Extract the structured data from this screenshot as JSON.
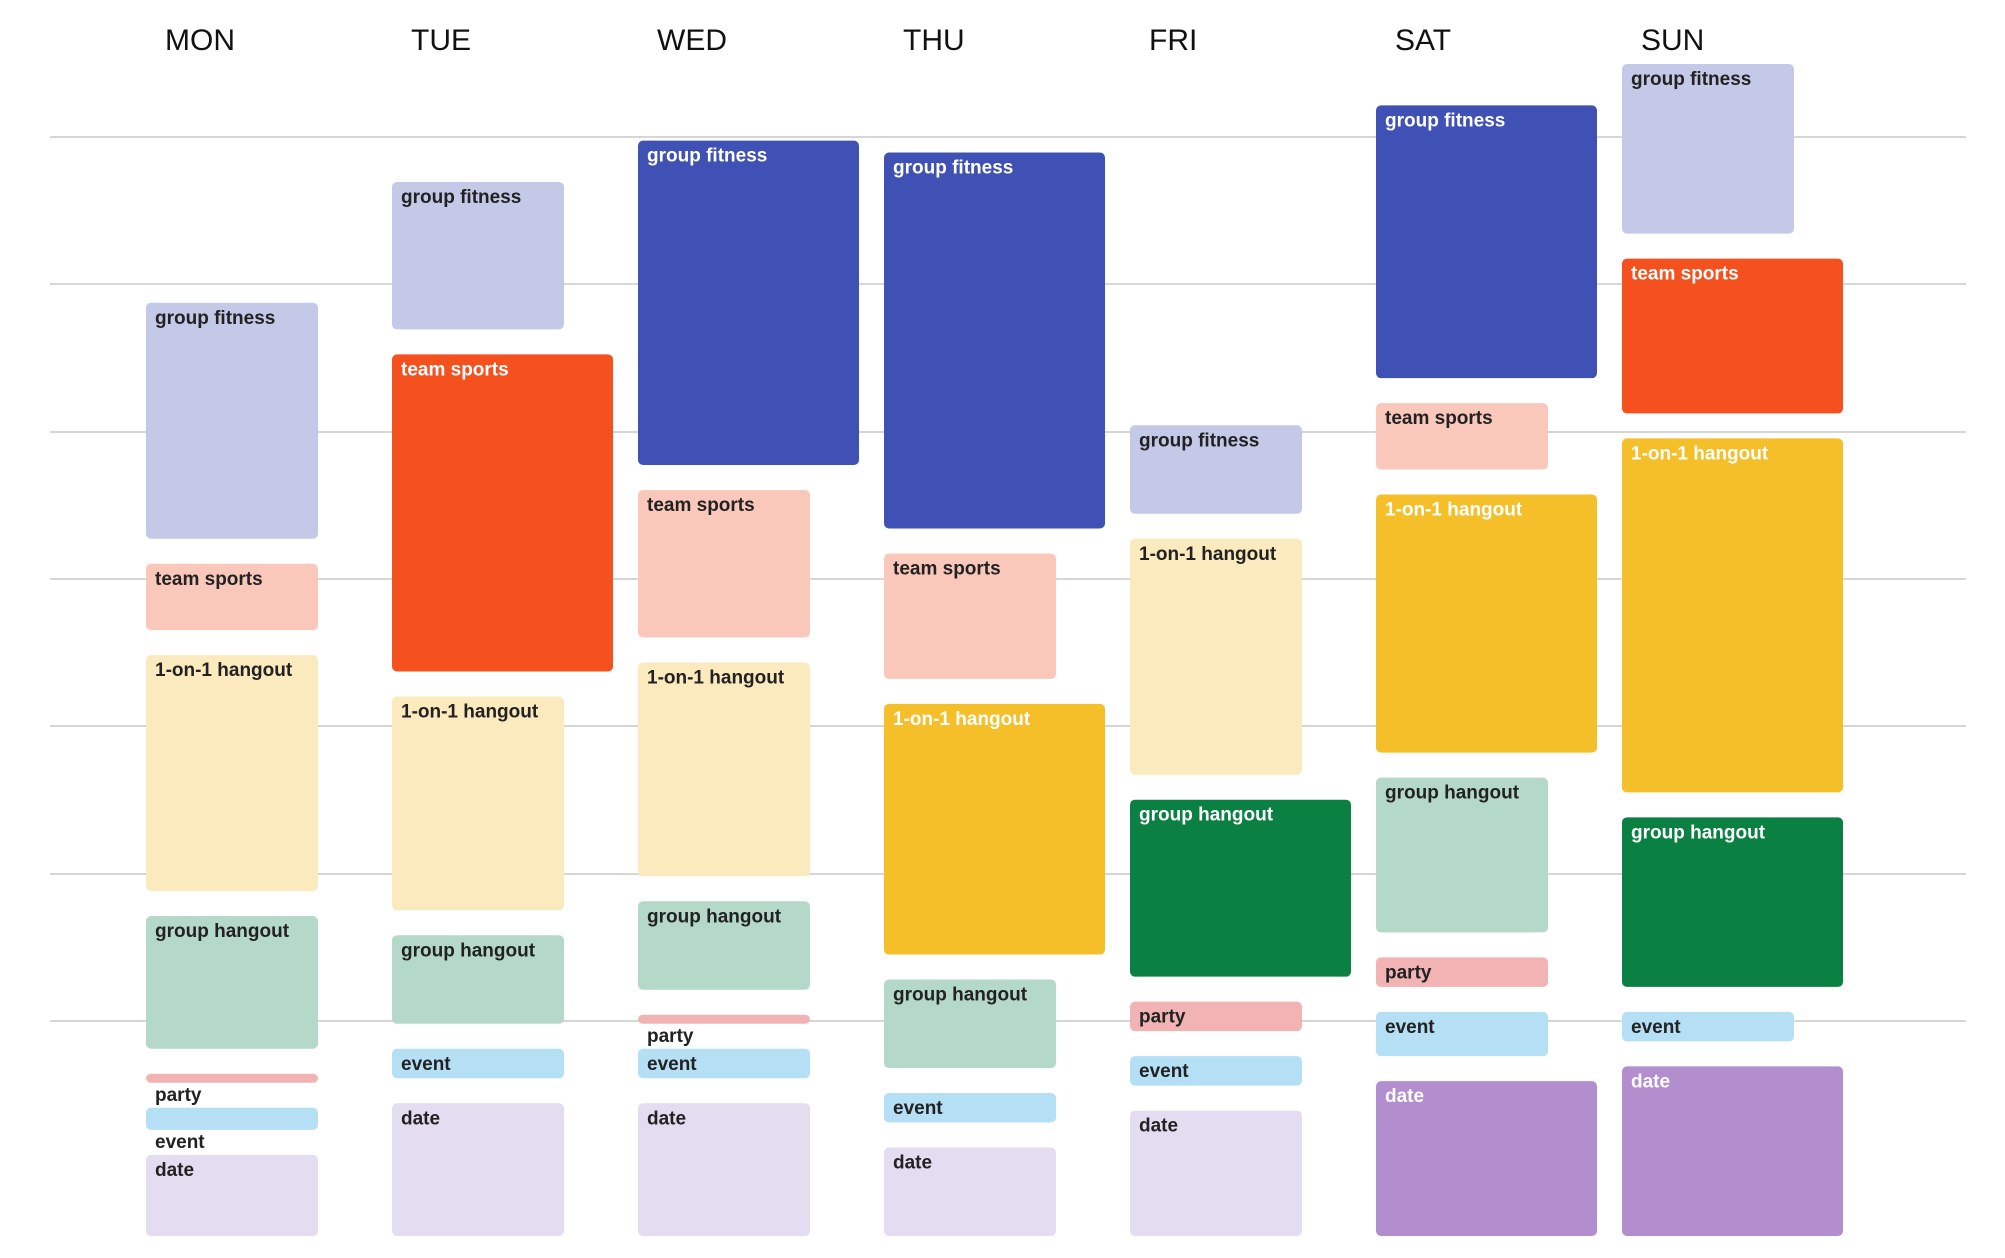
{
  "chart_data": {
    "type": "bar",
    "title": "",
    "days": [
      "MON",
      "TUE",
      "WED",
      "THU",
      "FRI",
      "SAT",
      "SUN"
    ],
    "grid": true,
    "categories": {
      "group fitness": {
        "light": "#c5c9e8",
        "dark": "#3f51b5"
      },
      "team sports": {
        "light": "#fac8ba",
        "dark": "#f4511e"
      },
      "1-on-1 hangout": {
        "light": "#fbeabd",
        "dark": "#f5bf29"
      },
      "group hangout": {
        "light": "#b5d9c8",
        "dark": "#0b8043"
      },
      "party": {
        "light": "#f1b3b3",
        "dark": "#e67c73"
      },
      "event": {
        "light": "#b4dff5",
        "dark": "#039be5"
      },
      "date": {
        "light": "#e4dcf0",
        "dark": "#b28ecf"
      }
    },
    "schedule": [
      {
        "day": "MON",
        "blocks": [
          {
            "label": "group fitness",
            "value": 1.6,
            "highlight": false
          },
          {
            "label": "team sports",
            "value": 0.45,
            "highlight": false
          },
          {
            "label": "1-on-1 hangout",
            "value": 1.6,
            "highlight": false
          },
          {
            "label": "group hangout",
            "value": 0.9,
            "highlight": false
          },
          {
            "label": "party",
            "value": 0.05,
            "highlight": false
          },
          {
            "label": "event",
            "value": 0.15,
            "highlight": false
          },
          {
            "label": "date",
            "value": 0.55,
            "highlight": false
          }
        ]
      },
      {
        "day": "TUE",
        "blocks": [
          {
            "label": "group fitness",
            "value": 1.0,
            "highlight": false
          },
          {
            "label": "team sports",
            "value": 2.15,
            "highlight": true
          },
          {
            "label": "1-on-1 hangout",
            "value": 1.45,
            "highlight": false
          },
          {
            "label": "group hangout",
            "value": 0.6,
            "highlight": false
          },
          {
            "label": "event",
            "value": 0.2,
            "highlight": false
          },
          {
            "label": "date",
            "value": 0.9,
            "highlight": false
          }
        ]
      },
      {
        "day": "WED",
        "blocks": [
          {
            "label": "group fitness",
            "value": 2.2,
            "highlight": true
          },
          {
            "label": "team sports",
            "value": 1.0,
            "highlight": false
          },
          {
            "label": "1-on-1 hangout",
            "value": 1.45,
            "highlight": false
          },
          {
            "label": "group hangout",
            "value": 0.6,
            "highlight": false
          },
          {
            "label": "party",
            "value": 0.05,
            "highlight": false
          },
          {
            "label": "event",
            "value": 0.2,
            "highlight": false
          },
          {
            "label": "date",
            "value": 0.9,
            "highlight": false
          }
        ]
      },
      {
        "day": "THU",
        "blocks": [
          {
            "label": "group fitness",
            "value": 2.55,
            "highlight": true
          },
          {
            "label": "team sports",
            "value": 0.85,
            "highlight": false
          },
          {
            "label": "1-on-1 hangout",
            "value": 1.7,
            "highlight": true
          },
          {
            "label": "group hangout",
            "value": 0.6,
            "highlight": false
          },
          {
            "label": "event",
            "value": 0.2,
            "highlight": false
          },
          {
            "label": "date",
            "value": 0.6,
            "highlight": false
          }
        ]
      },
      {
        "day": "FRI",
        "blocks": [
          {
            "label": "group fitness",
            "value": 0.6,
            "highlight": false
          },
          {
            "label": "1-on-1 hangout",
            "value": 1.6,
            "highlight": false
          },
          {
            "label": "group hangout",
            "value": 1.2,
            "highlight": true
          },
          {
            "label": "party",
            "value": 0.2,
            "highlight": false
          },
          {
            "label": "event",
            "value": 0.2,
            "highlight": false
          },
          {
            "label": "date",
            "value": 0.85,
            "highlight": false
          }
        ]
      },
      {
        "day": "SAT",
        "blocks": [
          {
            "label": "group fitness",
            "value": 1.85,
            "highlight": true
          },
          {
            "label": "team sports",
            "value": 0.45,
            "highlight": false
          },
          {
            "label": "1-on-1 hangout",
            "value": 1.75,
            "highlight": true
          },
          {
            "label": "group hangout",
            "value": 1.05,
            "highlight": false
          },
          {
            "label": "party",
            "value": 0.2,
            "highlight": false
          },
          {
            "label": "event",
            "value": 0.3,
            "highlight": false
          },
          {
            "label": "date",
            "value": 1.05,
            "highlight": true
          }
        ]
      },
      {
        "day": "SUN",
        "blocks": [
          {
            "label": "group fitness",
            "value": 1.15,
            "highlight": false
          },
          {
            "label": "team sports",
            "value": 1.05,
            "highlight": true
          },
          {
            "label": "1-on-1 hangout",
            "value": 2.4,
            "highlight": true
          },
          {
            "label": "group hangout",
            "value": 1.15,
            "highlight": true
          },
          {
            "label": "event",
            "value": 0.2,
            "highlight": false
          },
          {
            "label": "date",
            "value": 1.15,
            "highlight": true
          }
        ]
      }
    ]
  }
}
